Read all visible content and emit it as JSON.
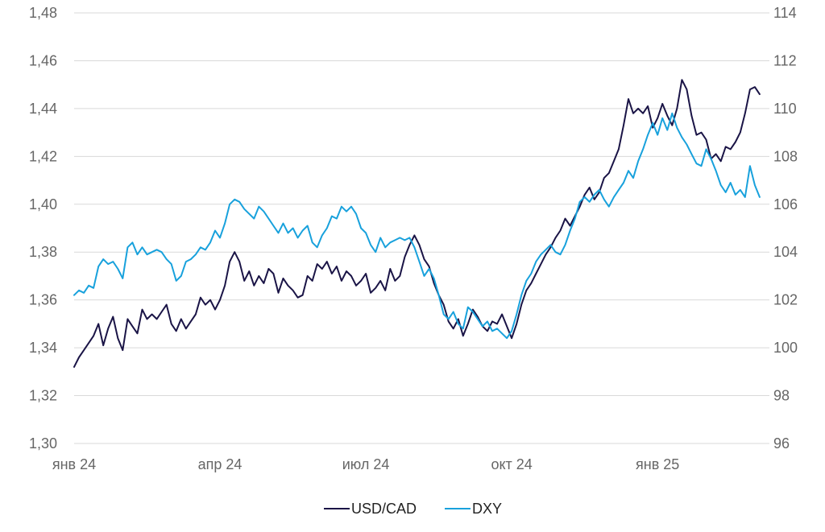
{
  "chart_data": {
    "type": "line",
    "title": "",
    "xlabel": "",
    "ylabel_left": "",
    "ylabel_right": "",
    "x_ticks": [
      "янв 24",
      "апр 24",
      "июл 24",
      "окт 24",
      "янв 25"
    ],
    "x_tick_positions": [
      0,
      3,
      6,
      9,
      12
    ],
    "x_range": [
      0,
      14.3
    ],
    "y_left": {
      "range": [
        1.3,
        1.48
      ],
      "ticks": [
        "1,30",
        "1,32",
        "1,34",
        "1,36",
        "1,38",
        "1,40",
        "1,42",
        "1,44",
        "1,46",
        "1,48"
      ]
    },
    "y_right": {
      "range": [
        96,
        114
      ],
      "ticks": [
        "96",
        "98",
        "100",
        "102",
        "104",
        "106",
        "108",
        "110",
        "112",
        "114"
      ]
    },
    "grid": true,
    "legend_position": "bottom-center",
    "series": [
      {
        "name": "USD/CAD",
        "axis": "left",
        "color": "#1a1446",
        "points": [
          [
            0.0,
            1.332
          ],
          [
            0.1,
            1.336
          ],
          [
            0.2,
            1.339
          ],
          [
            0.3,
            1.342
          ],
          [
            0.4,
            1.345
          ],
          [
            0.5,
            1.35
          ],
          [
            0.6,
            1.341
          ],
          [
            0.7,
            1.348
          ],
          [
            0.8,
            1.353
          ],
          [
            0.9,
            1.344
          ],
          [
            1.0,
            1.339
          ],
          [
            1.1,
            1.352
          ],
          [
            1.2,
            1.349
          ],
          [
            1.3,
            1.346
          ],
          [
            1.4,
            1.356
          ],
          [
            1.5,
            1.352
          ],
          [
            1.6,
            1.354
          ],
          [
            1.7,
            1.352
          ],
          [
            1.8,
            1.355
          ],
          [
            1.9,
            1.358
          ],
          [
            2.0,
            1.35
          ],
          [
            2.1,
            1.347
          ],
          [
            2.2,
            1.352
          ],
          [
            2.3,
            1.348
          ],
          [
            2.4,
            1.351
          ],
          [
            2.5,
            1.354
          ],
          [
            2.6,
            1.361
          ],
          [
            2.7,
            1.358
          ],
          [
            2.8,
            1.36
          ],
          [
            2.9,
            1.356
          ],
          [
            3.0,
            1.36
          ],
          [
            3.1,
            1.366
          ],
          [
            3.2,
            1.376
          ],
          [
            3.3,
            1.38
          ],
          [
            3.4,
            1.376
          ],
          [
            3.5,
            1.368
          ],
          [
            3.6,
            1.372
          ],
          [
            3.7,
            1.366
          ],
          [
            3.8,
            1.37
          ],
          [
            3.9,
            1.367
          ],
          [
            4.0,
            1.373
          ],
          [
            4.1,
            1.371
          ],
          [
            4.2,
            1.363
          ],
          [
            4.3,
            1.369
          ],
          [
            4.4,
            1.366
          ],
          [
            4.5,
            1.364
          ],
          [
            4.6,
            1.361
          ],
          [
            4.7,
            1.362
          ],
          [
            4.8,
            1.37
          ],
          [
            4.9,
            1.368
          ],
          [
            5.0,
            1.375
          ],
          [
            5.1,
            1.373
          ],
          [
            5.2,
            1.376
          ],
          [
            5.3,
            1.371
          ],
          [
            5.4,
            1.374
          ],
          [
            5.5,
            1.368
          ],
          [
            5.6,
            1.372
          ],
          [
            5.7,
            1.37
          ],
          [
            5.8,
            1.366
          ],
          [
            5.9,
            1.368
          ],
          [
            6.0,
            1.371
          ],
          [
            6.1,
            1.363
          ],
          [
            6.2,
            1.365
          ],
          [
            6.3,
            1.368
          ],
          [
            6.4,
            1.364
          ],
          [
            6.5,
            1.373
          ],
          [
            6.6,
            1.368
          ],
          [
            6.7,
            1.37
          ],
          [
            6.8,
            1.378
          ],
          [
            6.9,
            1.383
          ],
          [
            7.0,
            1.387
          ],
          [
            7.1,
            1.383
          ],
          [
            7.2,
            1.377
          ],
          [
            7.3,
            1.374
          ],
          [
            7.4,
            1.367
          ],
          [
            7.5,
            1.362
          ],
          [
            7.6,
            1.358
          ],
          [
            7.7,
            1.351
          ],
          [
            7.8,
            1.348
          ],
          [
            7.9,
            1.352
          ],
          [
            8.0,
            1.345
          ],
          [
            8.1,
            1.35
          ],
          [
            8.2,
            1.356
          ],
          [
            8.3,
            1.353
          ],
          [
            8.4,
            1.349
          ],
          [
            8.5,
            1.347
          ],
          [
            8.6,
            1.351
          ],
          [
            8.7,
            1.35
          ],
          [
            8.8,
            1.354
          ],
          [
            8.9,
            1.349
          ],
          [
            9.0,
            1.344
          ],
          [
            9.1,
            1.35
          ],
          [
            9.2,
            1.358
          ],
          [
            9.3,
            1.364
          ],
          [
            9.4,
            1.367
          ],
          [
            9.5,
            1.371
          ],
          [
            9.6,
            1.375
          ],
          [
            9.7,
            1.379
          ],
          [
            9.8,
            1.382
          ],
          [
            9.9,
            1.386
          ],
          [
            10.0,
            1.389
          ],
          [
            10.1,
            1.394
          ],
          [
            10.2,
            1.391
          ],
          [
            10.3,
            1.395
          ],
          [
            10.4,
            1.399
          ],
          [
            10.5,
            1.404
          ],
          [
            10.6,
            1.407
          ],
          [
            10.7,
            1.402
          ],
          [
            10.8,
            1.405
          ],
          [
            10.9,
            1.411
          ],
          [
            11.0,
            1.413
          ],
          [
            11.1,
            1.418
          ],
          [
            11.2,
            1.423
          ],
          [
            11.3,
            1.433
          ],
          [
            11.4,
            1.444
          ],
          [
            11.5,
            1.438
          ],
          [
            11.6,
            1.44
          ],
          [
            11.7,
            1.438
          ],
          [
            11.8,
            1.441
          ],
          [
            11.9,
            1.432
          ],
          [
            12.0,
            1.436
          ],
          [
            12.1,
            1.442
          ],
          [
            12.2,
            1.437
          ],
          [
            12.3,
            1.433
          ],
          [
            12.4,
            1.44
          ],
          [
            12.5,
            1.452
          ],
          [
            12.6,
            1.448
          ],
          [
            12.7,
            1.437
          ],
          [
            12.8,
            1.429
          ],
          [
            12.9,
            1.43
          ],
          [
            13.0,
            1.427
          ],
          [
            13.1,
            1.419
          ],
          [
            13.2,
            1.421
          ],
          [
            13.3,
            1.418
          ],
          [
            13.4,
            1.424
          ],
          [
            13.5,
            1.423
          ],
          [
            13.6,
            1.426
          ],
          [
            13.7,
            1.43
          ],
          [
            13.8,
            1.438
          ],
          [
            13.9,
            1.448
          ],
          [
            14.0,
            1.449
          ],
          [
            14.1,
            1.446
          ]
        ]
      },
      {
        "name": "DXY",
        "axis": "right",
        "color": "#18a1dc",
        "points": [
          [
            0.0,
            102.2
          ],
          [
            0.1,
            102.4
          ],
          [
            0.2,
            102.3
          ],
          [
            0.3,
            102.6
          ],
          [
            0.4,
            102.5
          ],
          [
            0.5,
            103.4
          ],
          [
            0.6,
            103.7
          ],
          [
            0.7,
            103.5
          ],
          [
            0.8,
            103.6
          ],
          [
            0.9,
            103.3
          ],
          [
            1.0,
            102.9
          ],
          [
            1.1,
            104.2
          ],
          [
            1.2,
            104.4
          ],
          [
            1.3,
            103.9
          ],
          [
            1.4,
            104.2
          ],
          [
            1.5,
            103.9
          ],
          [
            1.6,
            104.0
          ],
          [
            1.7,
            104.1
          ],
          [
            1.8,
            104.0
          ],
          [
            1.9,
            103.7
          ],
          [
            2.0,
            103.5
          ],
          [
            2.1,
            102.8
          ],
          [
            2.2,
            103.0
          ],
          [
            2.3,
            103.6
          ],
          [
            2.4,
            103.7
          ],
          [
            2.5,
            103.9
          ],
          [
            2.6,
            104.2
          ],
          [
            2.7,
            104.1
          ],
          [
            2.8,
            104.4
          ],
          [
            2.9,
            104.9
          ],
          [
            3.0,
            104.6
          ],
          [
            3.1,
            105.2
          ],
          [
            3.2,
            106.0
          ],
          [
            3.3,
            106.2
          ],
          [
            3.4,
            106.1
          ],
          [
            3.5,
            105.8
          ],
          [
            3.6,
            105.6
          ],
          [
            3.7,
            105.4
          ],
          [
            3.8,
            105.9
          ],
          [
            3.9,
            105.7
          ],
          [
            4.0,
            105.4
          ],
          [
            4.1,
            105.1
          ],
          [
            4.2,
            104.8
          ],
          [
            4.3,
            105.2
          ],
          [
            4.4,
            104.8
          ],
          [
            4.5,
            105.0
          ],
          [
            4.6,
            104.6
          ],
          [
            4.7,
            104.9
          ],
          [
            4.8,
            105.1
          ],
          [
            4.9,
            104.4
          ],
          [
            5.0,
            104.2
          ],
          [
            5.1,
            104.7
          ],
          [
            5.2,
            105.0
          ],
          [
            5.3,
            105.5
          ],
          [
            5.4,
            105.4
          ],
          [
            5.5,
            105.9
          ],
          [
            5.6,
            105.7
          ],
          [
            5.7,
            105.9
          ],
          [
            5.8,
            105.6
          ],
          [
            5.9,
            105.0
          ],
          [
            6.0,
            104.8
          ],
          [
            6.1,
            104.3
          ],
          [
            6.2,
            104.0
          ],
          [
            6.3,
            104.6
          ],
          [
            6.4,
            104.2
          ],
          [
            6.5,
            104.4
          ],
          [
            6.6,
            104.5
          ],
          [
            6.7,
            104.6
          ],
          [
            6.8,
            104.5
          ],
          [
            6.9,
            104.6
          ],
          [
            7.0,
            104.2
          ],
          [
            7.1,
            103.6
          ],
          [
            7.2,
            103.0
          ],
          [
            7.3,
            103.3
          ],
          [
            7.4,
            102.9
          ],
          [
            7.5,
            102.2
          ],
          [
            7.6,
            101.4
          ],
          [
            7.7,
            101.2
          ],
          [
            7.8,
            101.5
          ],
          [
            7.9,
            101.0
          ],
          [
            8.0,
            100.8
          ],
          [
            8.1,
            101.7
          ],
          [
            8.2,
            101.5
          ],
          [
            8.3,
            101.2
          ],
          [
            8.4,
            100.9
          ],
          [
            8.5,
            101.1
          ],
          [
            8.6,
            100.7
          ],
          [
            8.7,
            100.8
          ],
          [
            8.8,
            100.6
          ],
          [
            8.9,
            100.4
          ],
          [
            9.0,
            100.7
          ],
          [
            9.1,
            101.4
          ],
          [
            9.2,
            102.2
          ],
          [
            9.3,
            102.8
          ],
          [
            9.4,
            103.1
          ],
          [
            9.5,
            103.6
          ],
          [
            9.6,
            103.9
          ],
          [
            9.7,
            104.1
          ],
          [
            9.8,
            104.3
          ],
          [
            9.9,
            104.0
          ],
          [
            10.0,
            103.9
          ],
          [
            10.1,
            104.3
          ],
          [
            10.2,
            104.9
          ],
          [
            10.3,
            105.4
          ],
          [
            10.4,
            106.1
          ],
          [
            10.5,
            106.3
          ],
          [
            10.6,
            106.1
          ],
          [
            10.7,
            106.4
          ],
          [
            10.8,
            106.6
          ],
          [
            10.9,
            106.2
          ],
          [
            11.0,
            105.9
          ],
          [
            11.1,
            106.3
          ],
          [
            11.2,
            106.6
          ],
          [
            11.3,
            106.9
          ],
          [
            11.4,
            107.4
          ],
          [
            11.5,
            107.1
          ],
          [
            11.6,
            107.8
          ],
          [
            11.7,
            108.3
          ],
          [
            11.7,
            108.3
          ],
          [
            11.8,
            108.9
          ],
          [
            11.9,
            109.4
          ],
          [
            12.0,
            108.9
          ],
          [
            12.1,
            109.6
          ],
          [
            12.2,
            109.1
          ],
          [
            12.3,
            109.8
          ],
          [
            12.4,
            109.2
          ],
          [
            12.5,
            108.8
          ],
          [
            12.6,
            108.5
          ],
          [
            12.7,
            108.1
          ],
          [
            12.8,
            107.7
          ],
          [
            12.9,
            107.6
          ],
          [
            13.0,
            108.3
          ],
          [
            13.1,
            107.9
          ],
          [
            13.2,
            107.4
          ],
          [
            13.3,
            106.8
          ],
          [
            13.4,
            106.5
          ],
          [
            13.5,
            106.9
          ],
          [
            13.6,
            106.4
          ],
          [
            13.7,
            106.6
          ],
          [
            13.8,
            106.3
          ],
          [
            13.9,
            107.6
          ],
          [
            14.0,
            106.8
          ],
          [
            14.1,
            106.3
          ]
        ]
      }
    ]
  }
}
